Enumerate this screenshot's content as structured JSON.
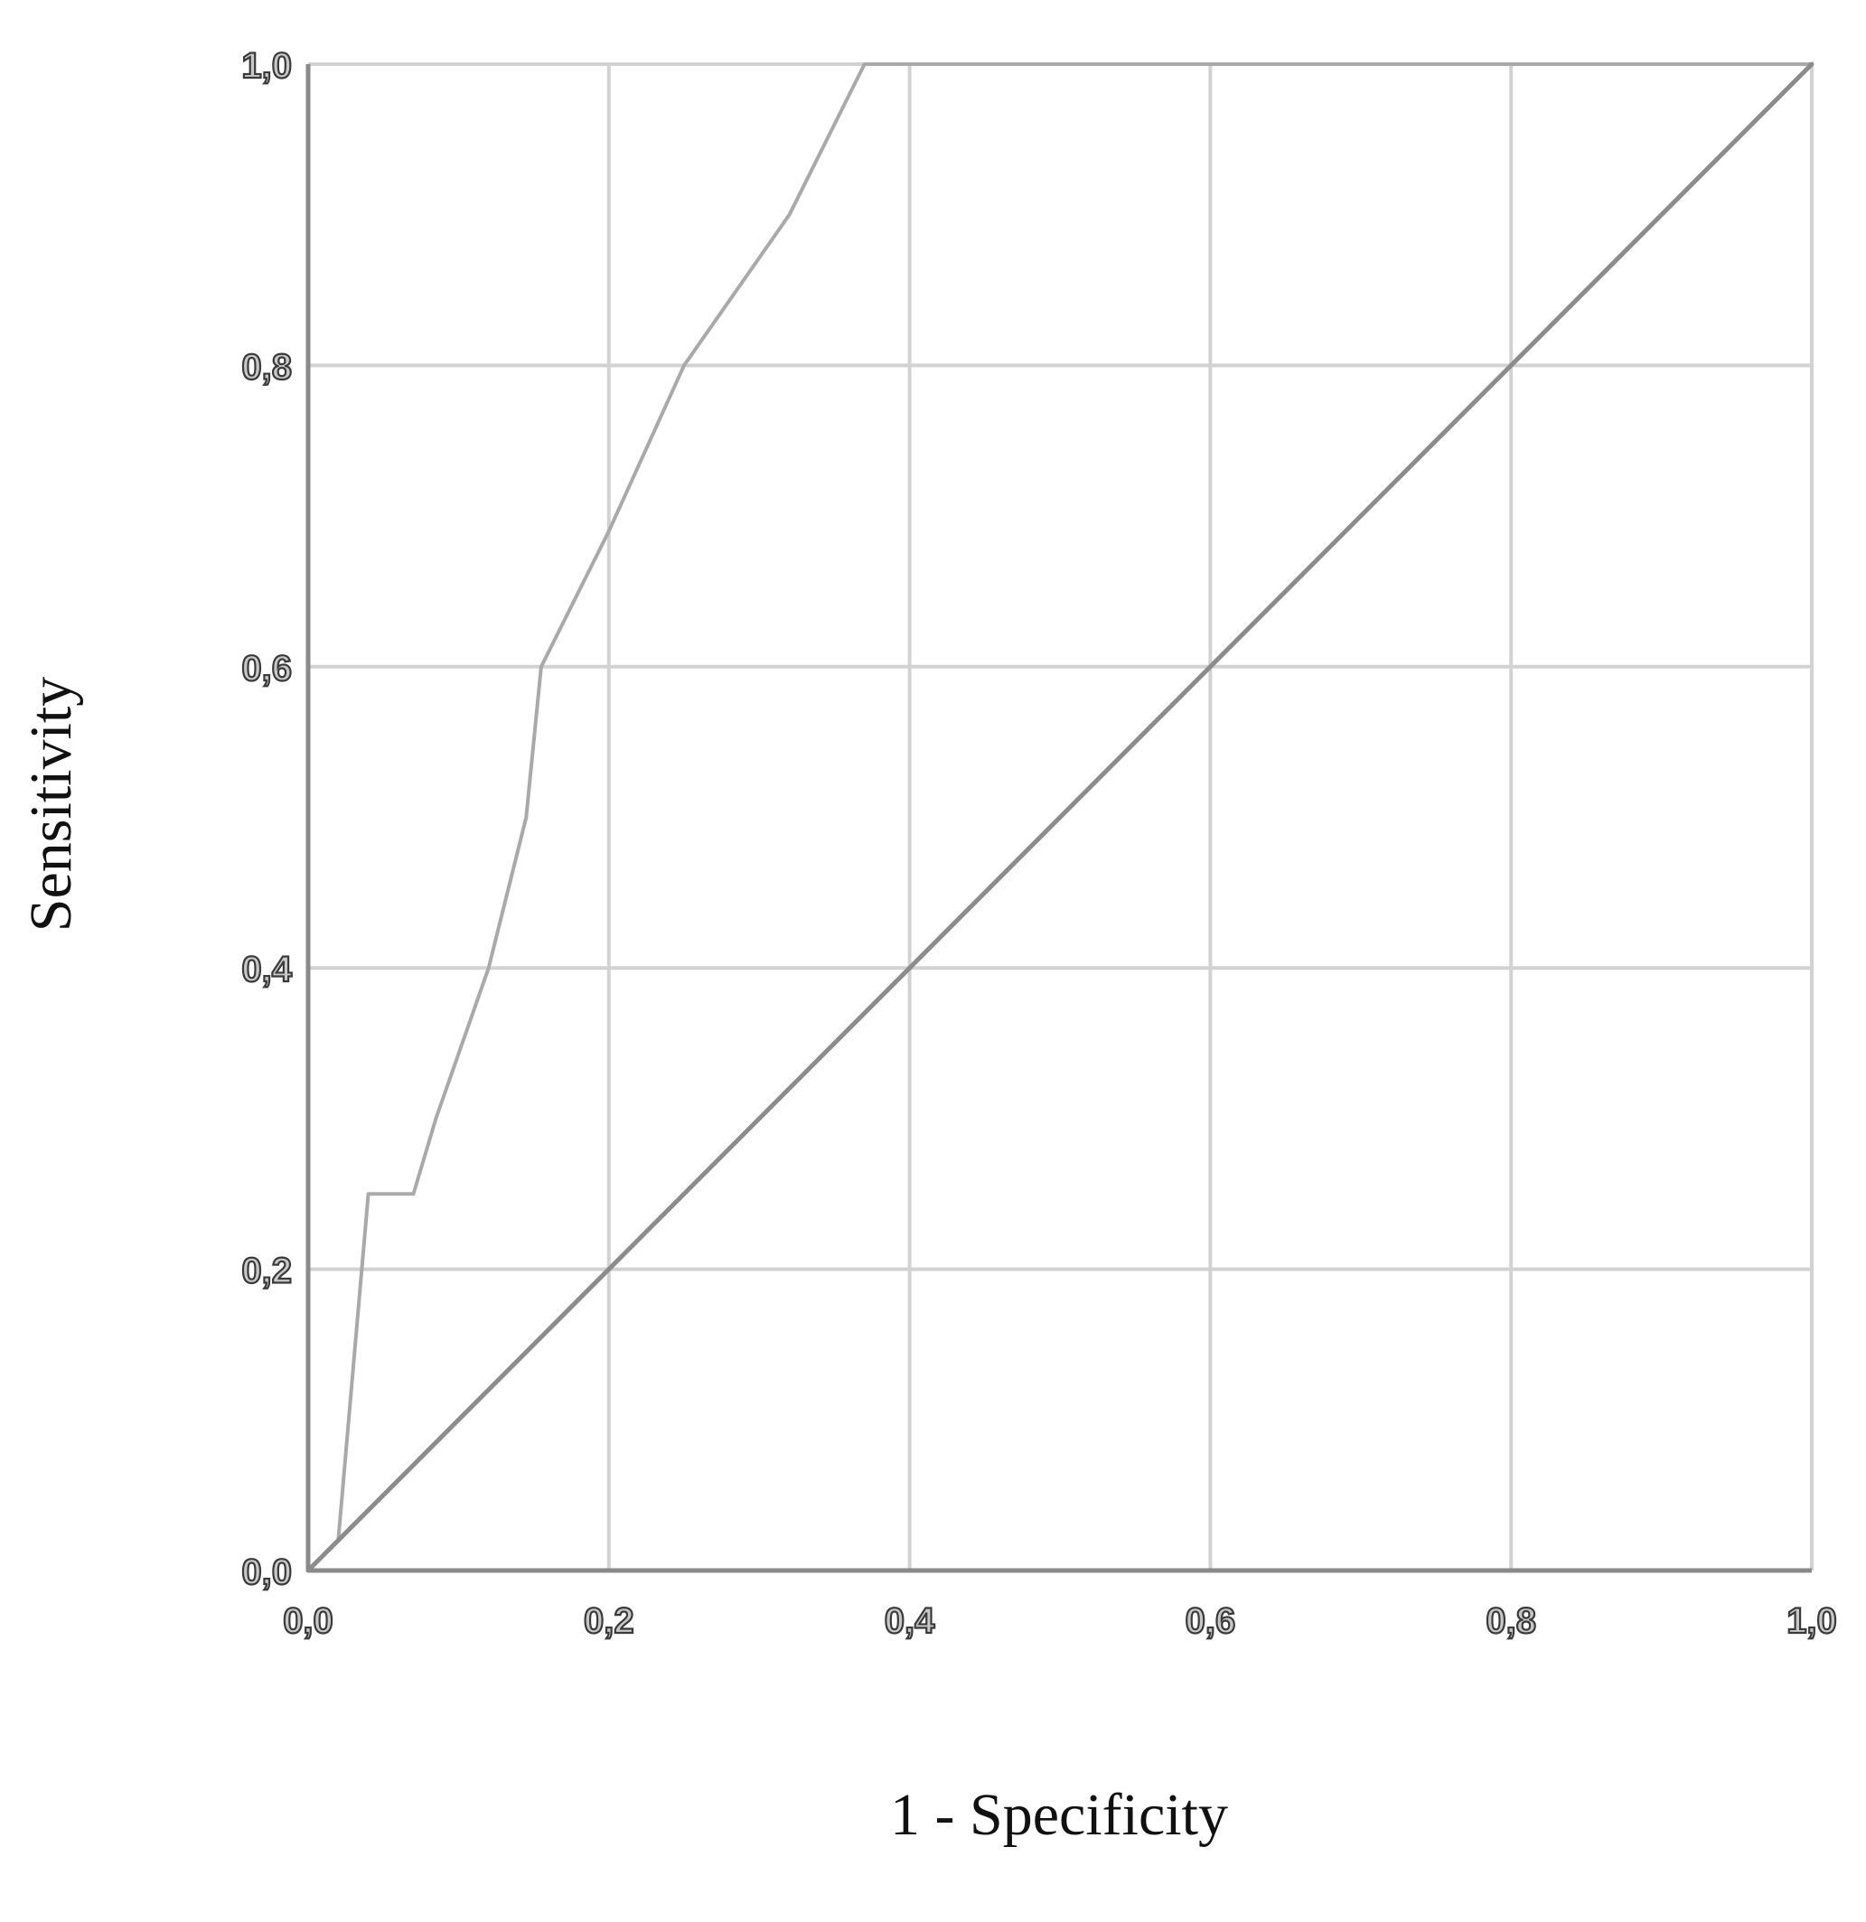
{
  "chart_data": {
    "type": "line",
    "title": "",
    "xlabel": "1 - Specificity",
    "ylabel": "Sensitivity",
    "xlim": [
      0,
      1
    ],
    "ylim": [
      0,
      1
    ],
    "grid": true,
    "x_ticks": [
      0,
      0.2,
      0.4,
      0.6,
      0.8,
      1.0
    ],
    "y_ticks": [
      0,
      0.2,
      0.4,
      0.6,
      0.8,
      1.0
    ],
    "x_tick_labels": [
      "0,0",
      "0,2",
      "0,4",
      "0,6",
      "0,8",
      "1,0"
    ],
    "y_tick_labels": [
      "0,0",
      "0,2",
      "0,4",
      "0,6",
      "0,8",
      "1,0"
    ],
    "series": [
      {
        "color": "#a9a9a9",
        "x": [
          0,
          0.02,
          0.04,
          0.07,
          0.085,
          0.12,
          0.145,
          0.155,
          0.2,
          0.25,
          0.32,
          0.37,
          1.0
        ],
        "y": [
          0,
          0.02,
          0.25,
          0.25,
          0.3,
          0.4,
          0.5,
          0.6,
          0.69,
          0.8,
          0.9,
          1.0,
          1.0
        ]
      },
      {
        "color": "#8c8c8c",
        "x": [
          0,
          1
        ],
        "y": [
          0,
          1
        ]
      }
    ]
  }
}
